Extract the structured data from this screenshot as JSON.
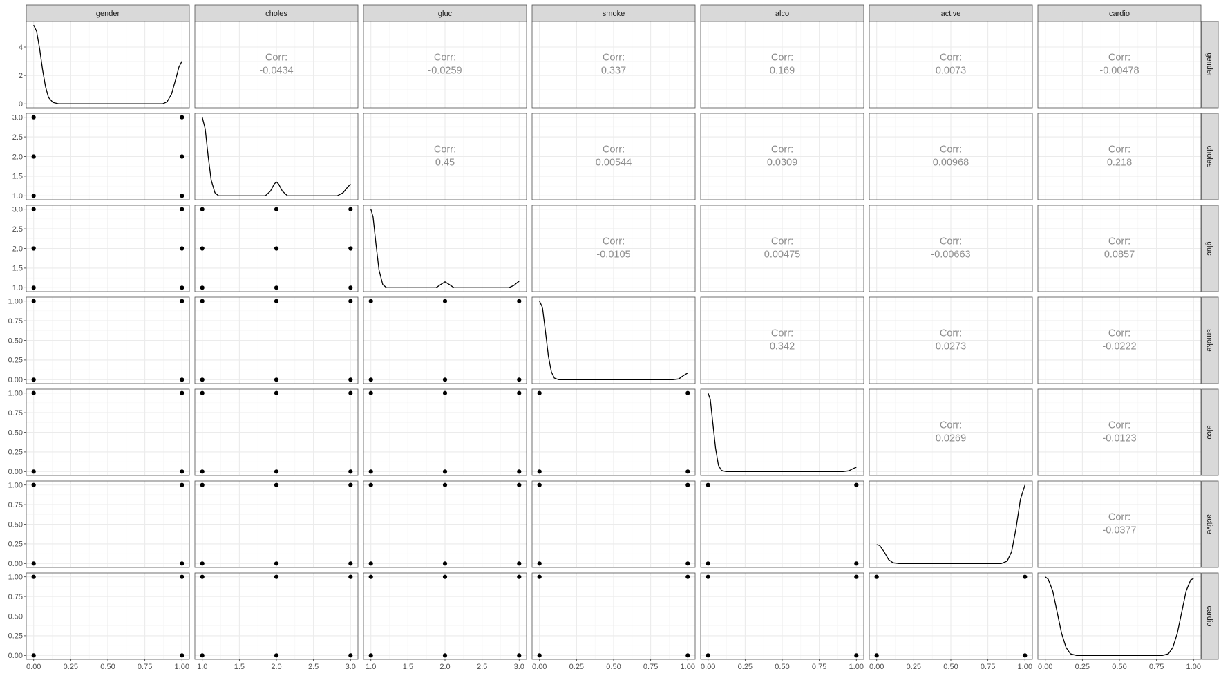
{
  "chart_data": {
    "type": "scatter",
    "layout": "pairs-matrix",
    "variables": [
      "gender",
      "choles",
      "gluc",
      "smoke",
      "alco",
      "active",
      "cardio"
    ],
    "corr_label": "Corr:",
    "correlations": [
      {
        "row": "gender",
        "col": "choles",
        "value": "-0.0434"
      },
      {
        "row": "gender",
        "col": "gluc",
        "value": "-0.0259"
      },
      {
        "row": "gender",
        "col": "smoke",
        "value": "0.337"
      },
      {
        "row": "gender",
        "col": "alco",
        "value": "0.169"
      },
      {
        "row": "gender",
        "col": "active",
        "value": "0.0073"
      },
      {
        "row": "gender",
        "col": "cardio",
        "value": "-0.00478"
      },
      {
        "row": "choles",
        "col": "gluc",
        "value": "0.45"
      },
      {
        "row": "choles",
        "col": "smoke",
        "value": "0.00544"
      },
      {
        "row": "choles",
        "col": "alco",
        "value": "0.0309"
      },
      {
        "row": "choles",
        "col": "active",
        "value": "0.00968"
      },
      {
        "row": "choles",
        "col": "cardio",
        "value": "0.218"
      },
      {
        "row": "gluc",
        "col": "smoke",
        "value": "-0.0105"
      },
      {
        "row": "gluc",
        "col": "alco",
        "value": "0.00475"
      },
      {
        "row": "gluc",
        "col": "active",
        "value": "-0.00663"
      },
      {
        "row": "gluc",
        "col": "cardio",
        "value": "0.0857"
      },
      {
        "row": "smoke",
        "col": "alco",
        "value": "0.342"
      },
      {
        "row": "smoke",
        "col": "active",
        "value": "0.0273"
      },
      {
        "row": "smoke",
        "col": "cardio",
        "value": "-0.0222"
      },
      {
        "row": "alco",
        "col": "active",
        "value": "0.0269"
      },
      {
        "row": "alco",
        "col": "cardio",
        "value": "-0.0123"
      },
      {
        "row": "active",
        "col": "cardio",
        "value": "-0.0377"
      }
    ],
    "x_axes": [
      {
        "var": "gender",
        "ticks": [
          "0.00",
          "0.25",
          "0.50",
          "0.75",
          "1.00"
        ]
      },
      {
        "var": "choles",
        "ticks": [
          "1.0",
          "1.5",
          "2.0",
          "2.5",
          "3.0"
        ]
      },
      {
        "var": "gluc",
        "ticks": [
          "1.0",
          "1.5",
          "2.0",
          "2.5",
          "3.0"
        ]
      },
      {
        "var": "smoke",
        "ticks": [
          "0.00",
          "0.25",
          "0.50",
          "0.75",
          "1.00"
        ]
      },
      {
        "var": "alco",
        "ticks": [
          "0.00",
          "0.25",
          "0.50",
          "0.75",
          "1.00"
        ]
      },
      {
        "var": "active",
        "ticks": [
          "0.00",
          "0.25",
          "0.50",
          "0.75",
          "1.00"
        ]
      },
      {
        "var": "cardio",
        "ticks": [
          "0.00",
          "0.25",
          "0.50",
          "0.75",
          "1.00"
        ]
      }
    ],
    "y_axes": [
      {
        "var": "gender",
        "ticks": [
          "0",
          "2",
          "4"
        ],
        "ylim": [
          -0.28,
          5.8
        ]
      },
      {
        "var": "choles",
        "ticks": [
          "1.0",
          "1.5",
          "2.0",
          "2.5",
          "3.0"
        ]
      },
      {
        "var": "gluc",
        "ticks": [
          "1.0",
          "1.5",
          "2.0",
          "2.5",
          "3.0"
        ]
      },
      {
        "var": "smoke",
        "ticks": [
          "0.00",
          "0.25",
          "0.50",
          "0.75",
          "1.00"
        ]
      },
      {
        "var": "alco",
        "ticks": [
          "0.00",
          "0.25",
          "0.50",
          "0.75",
          "1.00"
        ]
      },
      {
        "var": "active",
        "ticks": [
          "0.00",
          "0.25",
          "0.50",
          "0.75",
          "1.00"
        ]
      },
      {
        "var": "cardio",
        "ticks": [
          "0.00",
          "0.25",
          "0.50",
          "0.75",
          "1.00"
        ]
      }
    ],
    "variable_values": {
      "gender": [
        0,
        1
      ],
      "choles": [
        1,
        2,
        3
      ],
      "gluc": [
        1,
        2,
        3
      ],
      "smoke": [
        0,
        1
      ],
      "alco": [
        0,
        1
      ],
      "active": [
        0,
        1
      ],
      "cardio": [
        0,
        1
      ]
    },
    "densities": [
      {
        "var": "gender",
        "points": [
          [
            0.0,
            5.55
          ],
          [
            0.02,
            5.1
          ],
          [
            0.04,
            3.9
          ],
          [
            0.06,
            2.4
          ],
          [
            0.08,
            1.2
          ],
          [
            0.1,
            0.45
          ],
          [
            0.13,
            0.1
          ],
          [
            0.17,
            0.0
          ],
          [
            0.87,
            0.0
          ],
          [
            0.9,
            0.15
          ],
          [
            0.93,
            0.7
          ],
          [
            0.96,
            1.8
          ],
          [
            0.98,
            2.6
          ],
          [
            1.0,
            3.0
          ]
        ]
      },
      {
        "var": "choles",
        "points": [
          [
            1.0,
            3.0
          ],
          [
            1.04,
            2.7
          ],
          [
            1.08,
            2.0
          ],
          [
            1.12,
            1.4
          ],
          [
            1.17,
            1.08
          ],
          [
            1.22,
            1.0
          ],
          [
            1.85,
            1.0
          ],
          [
            1.92,
            1.12
          ],
          [
            1.97,
            1.3
          ],
          [
            2.0,
            1.35
          ],
          [
            2.03,
            1.3
          ],
          [
            2.08,
            1.12
          ],
          [
            2.15,
            1.0
          ],
          [
            2.82,
            1.0
          ],
          [
            2.9,
            1.08
          ],
          [
            2.96,
            1.22
          ],
          [
            3.0,
            1.3
          ]
        ]
      },
      {
        "var": "gluc",
        "points": [
          [
            1.0,
            3.0
          ],
          [
            1.03,
            2.8
          ],
          [
            1.07,
            2.1
          ],
          [
            1.11,
            1.45
          ],
          [
            1.16,
            1.08
          ],
          [
            1.21,
            1.0
          ],
          [
            1.88,
            1.0
          ],
          [
            1.94,
            1.08
          ],
          [
            2.0,
            1.15
          ],
          [
            2.06,
            1.08
          ],
          [
            2.12,
            1.0
          ],
          [
            2.86,
            1.0
          ],
          [
            2.93,
            1.06
          ],
          [
            2.98,
            1.14
          ],
          [
            3.0,
            1.16
          ]
        ]
      },
      {
        "var": "smoke",
        "points": [
          [
            0.0,
            1.0
          ],
          [
            0.02,
            0.92
          ],
          [
            0.04,
            0.62
          ],
          [
            0.06,
            0.3
          ],
          [
            0.08,
            0.1
          ],
          [
            0.1,
            0.02
          ],
          [
            0.13,
            0.0
          ],
          [
            0.9,
            0.0
          ],
          [
            0.94,
            0.01
          ],
          [
            0.97,
            0.05
          ],
          [
            1.0,
            0.085
          ]
        ]
      },
      {
        "var": "alco",
        "points": [
          [
            0.0,
            1.0
          ],
          [
            0.015,
            0.92
          ],
          [
            0.03,
            0.65
          ],
          [
            0.05,
            0.3
          ],
          [
            0.07,
            0.08
          ],
          [
            0.09,
            0.015
          ],
          [
            0.12,
            0.0
          ],
          [
            0.91,
            0.0
          ],
          [
            0.95,
            0.01
          ],
          [
            0.98,
            0.04
          ],
          [
            1.0,
            0.055
          ]
        ]
      },
      {
        "var": "active",
        "points": [
          [
            0.0,
            0.24
          ],
          [
            0.02,
            0.23
          ],
          [
            0.05,
            0.15
          ],
          [
            0.08,
            0.05
          ],
          [
            0.11,
            0.01
          ],
          [
            0.15,
            0.0
          ],
          [
            0.84,
            0.0
          ],
          [
            0.88,
            0.03
          ],
          [
            0.91,
            0.15
          ],
          [
            0.94,
            0.45
          ],
          [
            0.97,
            0.82
          ],
          [
            1.0,
            1.0
          ]
        ]
      },
      {
        "var": "cardio",
        "points": [
          [
            0.0,
            1.0
          ],
          [
            0.02,
            0.97
          ],
          [
            0.05,
            0.82
          ],
          [
            0.08,
            0.55
          ],
          [
            0.11,
            0.28
          ],
          [
            0.14,
            0.1
          ],
          [
            0.17,
            0.02
          ],
          [
            0.21,
            0.0
          ],
          [
            0.79,
            0.0
          ],
          [
            0.83,
            0.02
          ],
          [
            0.86,
            0.1
          ],
          [
            0.89,
            0.28
          ],
          [
            0.92,
            0.55
          ],
          [
            0.95,
            0.82
          ],
          [
            0.98,
            0.96
          ],
          [
            1.0,
            0.98
          ]
        ]
      }
    ],
    "grid": true,
    "colors": {
      "strip_fill": "#d9d9d9",
      "panel_border": "#4d4d4d",
      "grid_major": "#ebebeb",
      "grid_minor": "#f5f5f5",
      "marks": "#000000",
      "corr_text": "#8c8c8c",
      "tick_text": "#4d4d4d"
    }
  }
}
